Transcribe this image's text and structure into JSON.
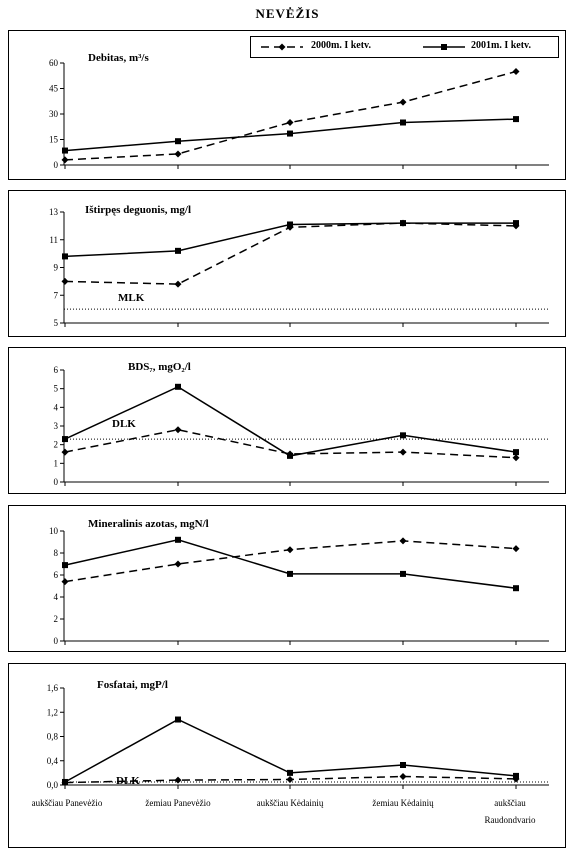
{
  "title": "NEVĖŽIS",
  "legend": {
    "series_2000": "2000m. I ketv.",
    "series_2001": "2001m. I ketv."
  },
  "categories": [
    "aukščiau Panevėžio",
    "žemiau Panevėžio",
    "aukščiau Kėdainių",
    "žemiau Kėdainių",
    "aukščiau Raudondvario"
  ],
  "category_lines": [
    [
      "aukščiau Panevėžio"
    ],
    [
      "žemiau Panevėžio"
    ],
    [
      "aukščiau Kėdainių"
    ],
    [
      "žemiau Kėdainių"
    ],
    [
      "aukščiau",
      "Raudondvario"
    ]
  ],
  "chart_data": [
    {
      "type": "line",
      "title": "Debitas, m³/s",
      "ylim": [
        0,
        60
      ],
      "yticks": [
        "0",
        "15",
        "30",
        "45",
        "60"
      ],
      "series": [
        {
          "name": "2000m. I ketv.",
          "values": [
            3,
            6.5,
            25,
            37,
            55
          ]
        },
        {
          "name": "2001m. I ketv.",
          "values": [
            8.5,
            14,
            18.5,
            25,
            27
          ]
        }
      ]
    },
    {
      "type": "line",
      "title": "Ištirpęs deguonis, mg/l",
      "ylim": [
        5,
        13
      ],
      "yticks": [
        "5",
        "7",
        "9",
        "11",
        "13"
      ],
      "series": [
        {
          "name": "2000m. I ketv.",
          "values": [
            8,
            7.8,
            11.9,
            12.2,
            12
          ]
        },
        {
          "name": "2001m. I ketv.",
          "values": [
            9.8,
            10.2,
            12.1,
            12.2,
            12.2
          ]
        }
      ],
      "reference": {
        "label": "MLK",
        "value": 6
      }
    },
    {
      "type": "line",
      "title": "BDS₇, mgO₂/l",
      "ylim": [
        0,
        6
      ],
      "yticks": [
        "0",
        "1",
        "2",
        "3",
        "4",
        "5",
        "6"
      ],
      "series": [
        {
          "name": "2000m. I ketv.",
          "values": [
            1.6,
            2.8,
            1.5,
            1.6,
            1.3
          ]
        },
        {
          "name": "2001m. I ketv.",
          "values": [
            2.3,
            5.1,
            1.4,
            2.5,
            1.6
          ]
        }
      ],
      "reference": {
        "label": "DLK",
        "value": 2.3
      }
    },
    {
      "type": "line",
      "title": "Mineralinis azotas, mgN/l",
      "ylim": [
        0,
        10
      ],
      "yticks": [
        "0",
        "2",
        "4",
        "6",
        "8",
        "10"
      ],
      "series": [
        {
          "name": "2000m. I ketv.",
          "values": [
            5.4,
            7,
            8.3,
            9.1,
            8.4
          ]
        },
        {
          "name": "2001m. I ketv.",
          "values": [
            6.9,
            9.2,
            6.1,
            6.1,
            4.8
          ]
        }
      ]
    },
    {
      "type": "line",
      "title": "Fosfatai, mgP/l",
      "ylim": [
        0,
        1.6
      ],
      "yticks": [
        "0,0",
        "0,4",
        "0,8",
        "1,2",
        "1,6"
      ],
      "series": [
        {
          "name": "2000m. I ketv.",
          "values": [
            0.04,
            0.08,
            0.09,
            0.14,
            0.1
          ]
        },
        {
          "name": "2001m. I ketv.",
          "values": [
            0.05,
            1.08,
            0.2,
            0.33,
            0.15
          ]
        }
      ],
      "reference": {
        "label": "DLK",
        "value": 0.05
      }
    }
  ]
}
